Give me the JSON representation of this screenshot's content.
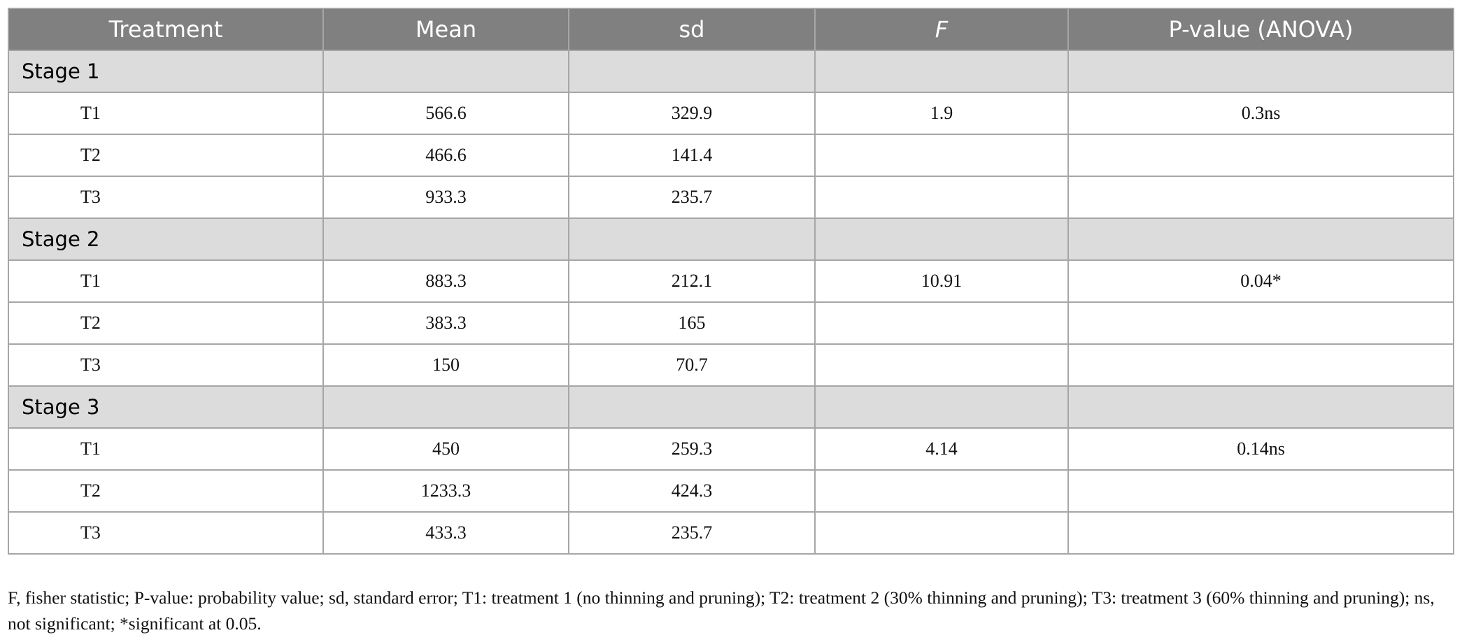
{
  "table": {
    "headers": [
      "Treatment",
      "Mean",
      "sd",
      "F",
      "P-value (ANOVA)"
    ],
    "groups": [
      {
        "label": "Stage 1",
        "rows": [
          [
            "T1",
            "566.6",
            "329.9",
            "1.9",
            "0.3ns"
          ],
          [
            "T2",
            "466.6",
            "141.4",
            null,
            null
          ],
          [
            "T3",
            "933.3",
            "235.7",
            null,
            null
          ]
        ]
      },
      {
        "label": "Stage 2",
        "rows": [
          [
            "T1",
            "883.3",
            "212.1",
            "10.91",
            "0.04*"
          ],
          [
            "T2",
            "383.3",
            "165",
            null,
            null
          ],
          [
            "T3",
            "150",
            "70.7",
            null,
            null
          ]
        ]
      },
      {
        "label": "Stage 3",
        "rows": [
          [
            "T1",
            "450",
            "259.3",
            "4.14",
            "0.14ns"
          ],
          [
            "T2",
            "1233.3",
            "424.3",
            null,
            null
          ],
          [
            "T3",
            "433.3",
            "235.7",
            null,
            null
          ]
        ]
      }
    ]
  },
  "footnote": "F, fisher statistic; P-value: probability value; sd, standard error; T1: treatment 1 (no thinning and pruning); T2: treatment 2 (30% thinning and pruning); T3: treatment 3 (60% thinning and pruning); ns, not significant; *significant at 0.05."
}
